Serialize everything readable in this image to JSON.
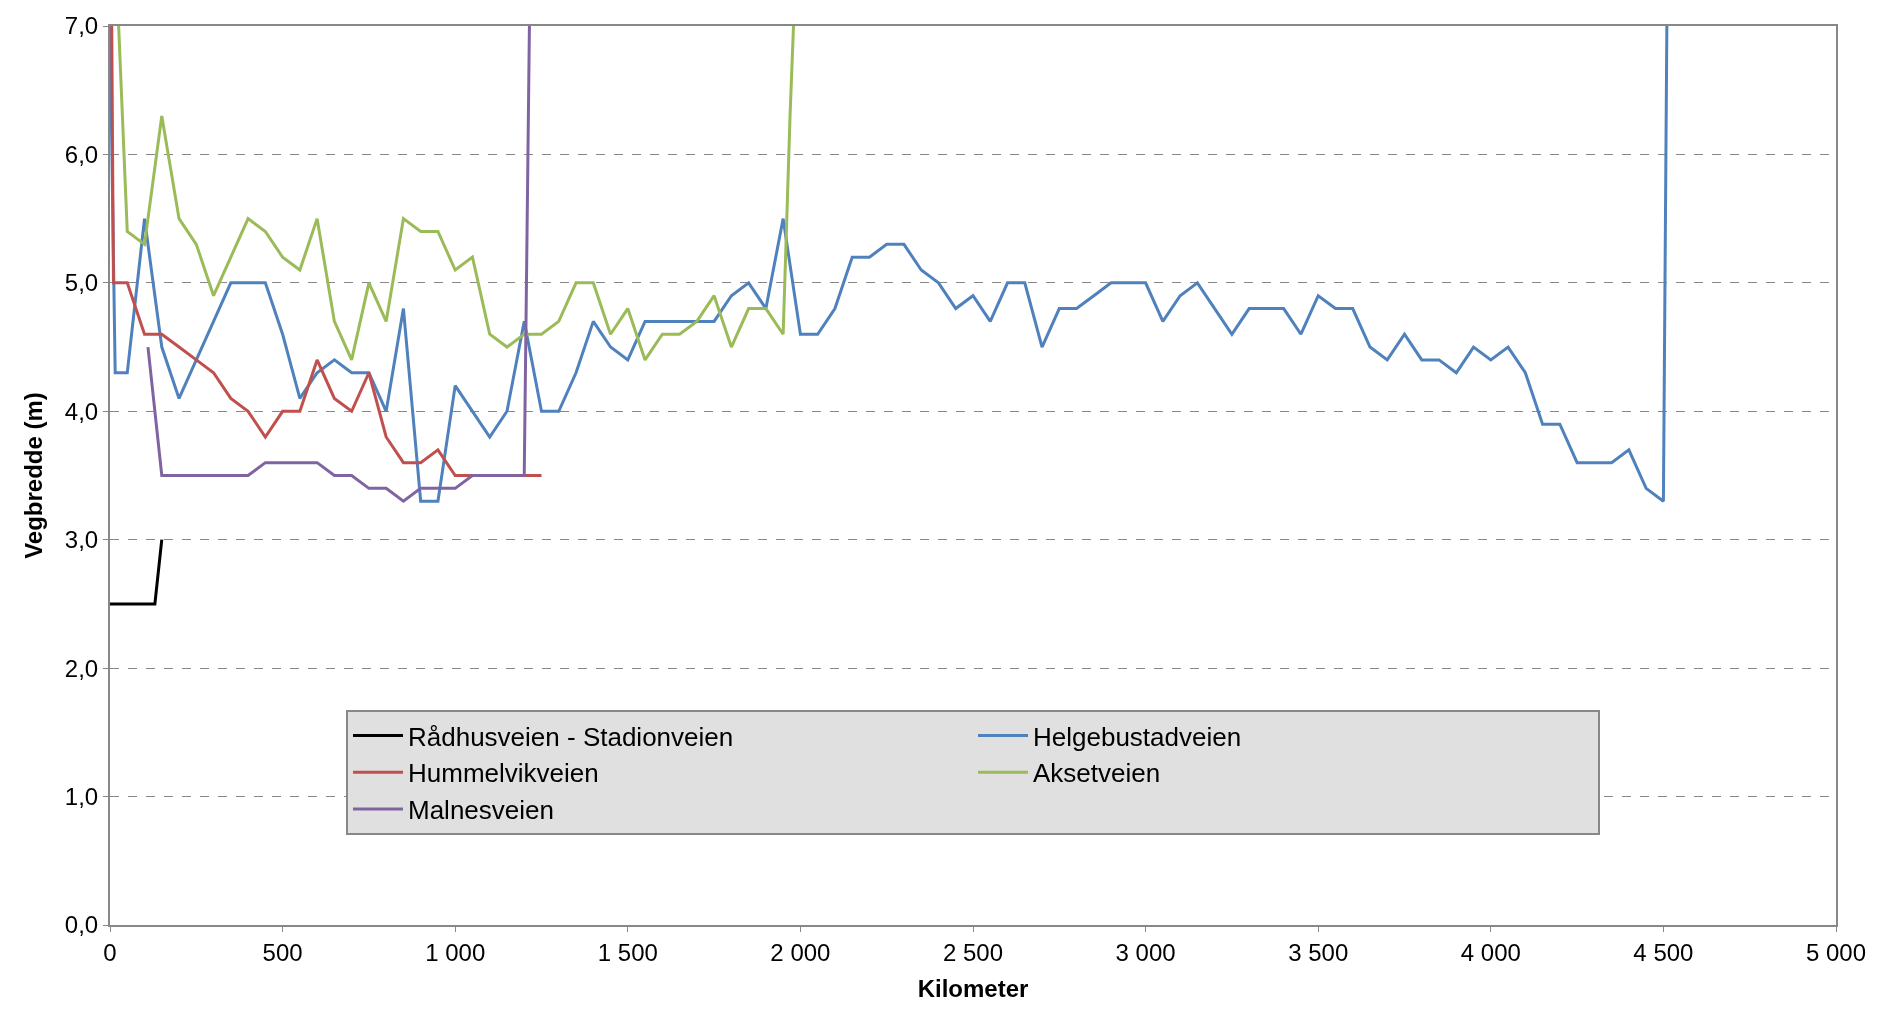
{
  "chart_data": {
    "type": "line",
    "xlabel": "Kilometer",
    "ylabel": "Vegbredde (m)",
    "xlim": [
      0,
      5000
    ],
    "ylim": [
      0,
      7
    ],
    "xticks": [
      0,
      500,
      {
        "value": 1000,
        "label": "1 000"
      },
      {
        "value": 1500,
        "label": "1 500"
      },
      {
        "value": 2000,
        "label": "2 000"
      },
      {
        "value": 2500,
        "label": "2 500"
      },
      {
        "value": 3000,
        "label": "3 000"
      },
      {
        "value": 3500,
        "label": "3 500"
      },
      {
        "value": 4000,
        "label": "4 000"
      },
      {
        "value": 4500,
        "label": "4 500"
      },
      {
        "value": 5000,
        "label": "5 000"
      }
    ],
    "yticks": [
      {
        "value": 0,
        "label": "0,0"
      },
      {
        "value": 1,
        "label": "1,0"
      },
      {
        "value": 2,
        "label": "2,0"
      },
      {
        "value": 3,
        "label": "3,0"
      },
      {
        "value": 4,
        "label": "4,0"
      },
      {
        "value": 5,
        "label": "5,0"
      },
      {
        "value": 6,
        "label": "6,0"
      },
      {
        "value": 7,
        "label": "7,0"
      }
    ],
    "grid": "y",
    "legend": "bottom",
    "marker": "none",
    "line_style": "solid",
    "series": [
      {
        "name": "Rådhusveien - Stadionveien",
        "color": "#000000",
        "x": [
          0,
          50,
          100,
          130,
          150
        ],
        "values": [
          2.5,
          2.5,
          2.5,
          2.5,
          3.0
        ]
      },
      {
        "name": "Helgebustadveien",
        "color": "#4f81bd",
        "x": [
          0,
          15,
          50,
          100,
          150,
          200,
          250,
          300,
          350,
          400,
          450,
          500,
          550,
          600,
          650,
          700,
          750,
          800,
          850,
          900,
          950,
          1000,
          1050,
          1100,
          1150,
          1200,
          1250,
          1300,
          1350,
          1400,
          1450,
          1500,
          1550,
          1600,
          1650,
          1700,
          1750,
          1800,
          1850,
          1900,
          1950,
          2000,
          2050,
          2100,
          2150,
          2200,
          2250,
          2300,
          2350,
          2400,
          2450,
          2500,
          2550,
          2600,
          2650,
          2700,
          2750,
          2800,
          2850,
          2900,
          2950,
          3000,
          3050,
          3100,
          3150,
          3200,
          3250,
          3300,
          3350,
          3400,
          3450,
          3500,
          3550,
          3600,
          3650,
          3700,
          3750,
          3800,
          3850,
          3900,
          3950,
          4000,
          4050,
          4100,
          4150,
          4200,
          4250,
          4300,
          4350,
          4400,
          4450,
          4500,
          4510
        ],
        "values": [
          7.0,
          4.3,
          4.3,
          5.5,
          4.5,
          4.1,
          4.4,
          4.7,
          5.0,
          5.0,
          5.0,
          4.6,
          4.1,
          4.3,
          4.4,
          4.3,
          4.3,
          4.0,
          4.8,
          3.3,
          3.3,
          4.2,
          4.0,
          3.8,
          4.0,
          4.7,
          4.0,
          4.0,
          4.3,
          4.7,
          4.5,
          4.4,
          4.7,
          4.7,
          4.7,
          4.7,
          4.7,
          4.9,
          5.0,
          4.8,
          5.5,
          4.6,
          4.6,
          4.8,
          5.2,
          5.2,
          5.3,
          5.3,
          5.1,
          5.0,
          4.8,
          4.9,
          4.7,
          5.0,
          5.0,
          4.5,
          4.8,
          4.8,
          4.9,
          5.0,
          5.0,
          5.0,
          4.7,
          4.9,
          5.0,
          4.8,
          4.6,
          4.8,
          4.8,
          4.8,
          4.6,
          4.9,
          4.8,
          4.8,
          4.5,
          4.4,
          4.6,
          4.4,
          4.4,
          4.3,
          4.5,
          4.4,
          4.5,
          4.3,
          3.9,
          3.9,
          3.6,
          3.6,
          3.6,
          3.7,
          3.4,
          3.3,
          7.0
        ]
      },
      {
        "name": "Hummelvikveien",
        "color": "#c0504d",
        "x": [
          5,
          10,
          50,
          100,
          150,
          200,
          250,
          300,
          350,
          400,
          450,
          500,
          550,
          600,
          650,
          700,
          750,
          800,
          850,
          900,
          950,
          1000,
          1050,
          1100,
          1150,
          1200,
          1250
        ],
        "values": [
          7.0,
          5.0,
          5.0,
          4.6,
          4.6,
          4.5,
          4.4,
          4.3,
          4.1,
          4.0,
          3.8,
          4.0,
          4.0,
          4.4,
          4.1,
          4.0,
          4.3,
          3.8,
          3.6,
          3.6,
          3.7,
          3.5,
          3.5,
          3.5,
          3.5,
          3.5,
          3.5
        ]
      },
      {
        "name": "Aksetveien",
        "color": "#9bbb59",
        "x": [
          25,
          50,
          100,
          150,
          200,
          250,
          300,
          350,
          400,
          450,
          500,
          550,
          600,
          650,
          700,
          750,
          800,
          850,
          900,
          950,
          1000,
          1050,
          1100,
          1150,
          1200,
          1250,
          1300,
          1350,
          1400,
          1450,
          1500,
          1550,
          1600,
          1650,
          1700,
          1750,
          1800,
          1850,
          1900,
          1950,
          1970,
          1980
        ],
        "values": [
          7.0,
          5.4,
          5.3,
          6.3,
          5.5,
          5.3,
          4.9,
          5.2,
          5.5,
          5.4,
          5.2,
          5.1,
          5.5,
          4.7,
          4.4,
          5.0,
          4.7,
          5.5,
          5.4,
          5.4,
          5.1,
          5.2,
          4.6,
          4.5,
          4.6,
          4.6,
          4.7,
          5.0,
          5.0,
          4.6,
          4.8,
          4.4,
          4.6,
          4.6,
          4.7,
          4.9,
          4.5,
          4.8,
          4.8,
          4.6,
          6.3,
          7.0
        ]
      },
      {
        "name": "Malnesveien",
        "color": "#8064a2",
        "x": [
          110,
          150,
          200,
          250,
          300,
          350,
          400,
          450,
          500,
          550,
          600,
          650,
          700,
          750,
          800,
          850,
          900,
          950,
          1000,
          1050,
          1100,
          1150,
          1200,
          1215
        ],
        "values": [
          4.5,
          3.5,
          3.5,
          3.5,
          3.5,
          3.5,
          3.5,
          3.6,
          3.6,
          3.6,
          3.6,
          3.5,
          3.5,
          3.4,
          3.4,
          3.3,
          3.4,
          3.4,
          3.4,
          3.5,
          3.5,
          3.5,
          3.5,
          7.0
        ]
      }
    ]
  }
}
